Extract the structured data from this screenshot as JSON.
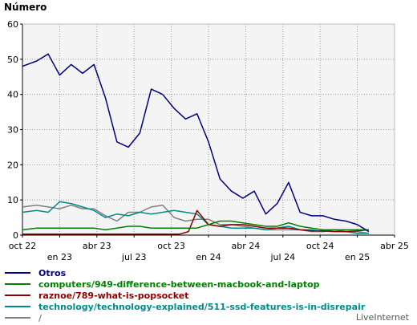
{
  "chart_data": {
    "type": "line",
    "ylabel": "Número",
    "xlabel": "",
    "ylim": [
      0,
      60
    ],
    "yticks": [
      0,
      10,
      20,
      30,
      40,
      50,
      60
    ],
    "grid": true,
    "legend_placement": "bottom",
    "x_ticks": [
      {
        "label": "oct 22",
        "week": 0
      },
      {
        "label": "en 23",
        "week": 13
      },
      {
        "label": "abr 23",
        "week": 26
      },
      {
        "label": "jul 23",
        "week": 39
      },
      {
        "label": "oct 23",
        "week": 52
      },
      {
        "label": "en 24",
        "week": 65
      },
      {
        "label": "abr 24",
        "week": 78
      },
      {
        "label": "jul 24",
        "week": 91
      },
      {
        "label": "oct 24",
        "week": 104
      },
      {
        "label": "en 25",
        "week": 117
      },
      {
        "label": "abr 25",
        "week": 130
      }
    ],
    "series": [
      {
        "name": "Otros",
        "color": "#000080",
        "values": [
          [
            0,
            48
          ],
          [
            5,
            49.5
          ],
          [
            9,
            51.5
          ],
          [
            13,
            45.5
          ],
          [
            17,
            48.5
          ],
          [
            21,
            46
          ],
          [
            25,
            48.5
          ],
          [
            29,
            39
          ],
          [
            33,
            26.5
          ],
          [
            37,
            25
          ],
          [
            41,
            29
          ],
          [
            45,
            41.5
          ],
          [
            49,
            40
          ],
          [
            53,
            36
          ],
          [
            57,
            33
          ],
          [
            61,
            34.5
          ],
          [
            65,
            26.5
          ],
          [
            69,
            16
          ],
          [
            73,
            12.5
          ],
          [
            77,
            10.5
          ],
          [
            81,
            12.5
          ],
          [
            85,
            6
          ],
          [
            89,
            9
          ],
          [
            93,
            15
          ],
          [
            97,
            6.5
          ],
          [
            101,
            5.5
          ],
          [
            105,
            5.5
          ],
          [
            109,
            4.5
          ],
          [
            113,
            4
          ],
          [
            117,
            3
          ],
          [
            121,
            1
          ]
        ]
      },
      {
        "name": "computers/949-difference-between-macbook-and-laptop",
        "color": "#008000",
        "values": [
          [
            0,
            1.5
          ],
          [
            5,
            2
          ],
          [
            9,
            2
          ],
          [
            13,
            2
          ],
          [
            17,
            2
          ],
          [
            21,
            2
          ],
          [
            25,
            2
          ],
          [
            29,
            1.5
          ],
          [
            33,
            2
          ],
          [
            37,
            2.5
          ],
          [
            41,
            2.5
          ],
          [
            45,
            2
          ],
          [
            49,
            2
          ],
          [
            53,
            2
          ],
          [
            57,
            2
          ],
          [
            61,
            2
          ],
          [
            65,
            3
          ],
          [
            69,
            4
          ],
          [
            73,
            4
          ],
          [
            77,
            3.5
          ],
          [
            81,
            3
          ],
          [
            85,
            2.5
          ],
          [
            89,
            2.5
          ],
          [
            93,
            3.5
          ],
          [
            97,
            2.5
          ],
          [
            101,
            2
          ],
          [
            105,
            1.5
          ],
          [
            109,
            1.5
          ],
          [
            113,
            1.5
          ],
          [
            117,
            1.5
          ],
          [
            121,
            1.5
          ]
        ]
      },
      {
        "name": "raznoe/789-what-is-popsocket",
        "color": "#8B0000",
        "values": [
          [
            0,
            0.3
          ],
          [
            10,
            0.3
          ],
          [
            20,
            0.3
          ],
          [
            30,
            0.3
          ],
          [
            40,
            0.3
          ],
          [
            50,
            0.3
          ],
          [
            55,
            0.3
          ],
          [
            58,
            1
          ],
          [
            61,
            7
          ],
          [
            65,
            3
          ],
          [
            69,
            2.5
          ],
          [
            73,
            3
          ],
          [
            77,
            3
          ],
          [
            81,
            2.5
          ],
          [
            85,
            2
          ],
          [
            89,
            2
          ],
          [
            93,
            2
          ],
          [
            97,
            1.5
          ],
          [
            101,
            1.2
          ],
          [
            105,
            1.2
          ],
          [
            109,
            1
          ],
          [
            113,
            1
          ],
          [
            117,
            1.2
          ],
          [
            121,
            1.5
          ]
        ]
      },
      {
        "name": "technology/technology-explained/511-ssd-features-is-in-disrepair",
        "color": "#008B8B",
        "values": [
          [
            0,
            6.5
          ],
          [
            5,
            7
          ],
          [
            9,
            6.5
          ],
          [
            13,
            9.5
          ],
          [
            17,
            9
          ],
          [
            21,
            8
          ],
          [
            25,
            7
          ],
          [
            29,
            5
          ],
          [
            33,
            6
          ],
          [
            37,
            5.5
          ],
          [
            41,
            6.5
          ],
          [
            45,
            6
          ],
          [
            49,
            6.5
          ],
          [
            53,
            7
          ],
          [
            57,
            6.5
          ],
          [
            61,
            6
          ],
          [
            65,
            3
          ],
          [
            69,
            2.5
          ],
          [
            73,
            2
          ],
          [
            77,
            2
          ],
          [
            81,
            2
          ],
          [
            85,
            1.5
          ],
          [
            89,
            2
          ],
          [
            93,
            2.5
          ],
          [
            97,
            1.5
          ],
          [
            101,
            1.5
          ],
          [
            105,
            1
          ],
          [
            109,
            1.5
          ],
          [
            113,
            1
          ],
          [
            117,
            0.5
          ],
          [
            121,
            0.5
          ]
        ]
      },
      {
        "name": "/",
        "color": "#808080",
        "values": [
          [
            0,
            8
          ],
          [
            5,
            8.5
          ],
          [
            9,
            8
          ],
          [
            13,
            7.5
          ],
          [
            17,
            8.5
          ],
          [
            21,
            7.5
          ],
          [
            25,
            7.5
          ],
          [
            29,
            5.5
          ],
          [
            33,
            4
          ],
          [
            37,
            6.5
          ],
          [
            41,
            6.5
          ],
          [
            45,
            8
          ],
          [
            49,
            8.5
          ],
          [
            53,
            5
          ],
          [
            57,
            4
          ],
          [
            61,
            4.5
          ],
          [
            65,
            4.5
          ],
          [
            69,
            3
          ],
          [
            73,
            3
          ],
          [
            77,
            2.5
          ],
          [
            81,
            2
          ],
          [
            85,
            1.5
          ],
          [
            89,
            1.5
          ],
          [
            93,
            1.5
          ],
          [
            97,
            1.5
          ],
          [
            101,
            1
          ],
          [
            105,
            1
          ],
          [
            109,
            1.5
          ],
          [
            113,
            1
          ],
          [
            117,
            1
          ],
          [
            121,
            0.5
          ]
        ]
      }
    ]
  },
  "footer": "LiveInternet"
}
